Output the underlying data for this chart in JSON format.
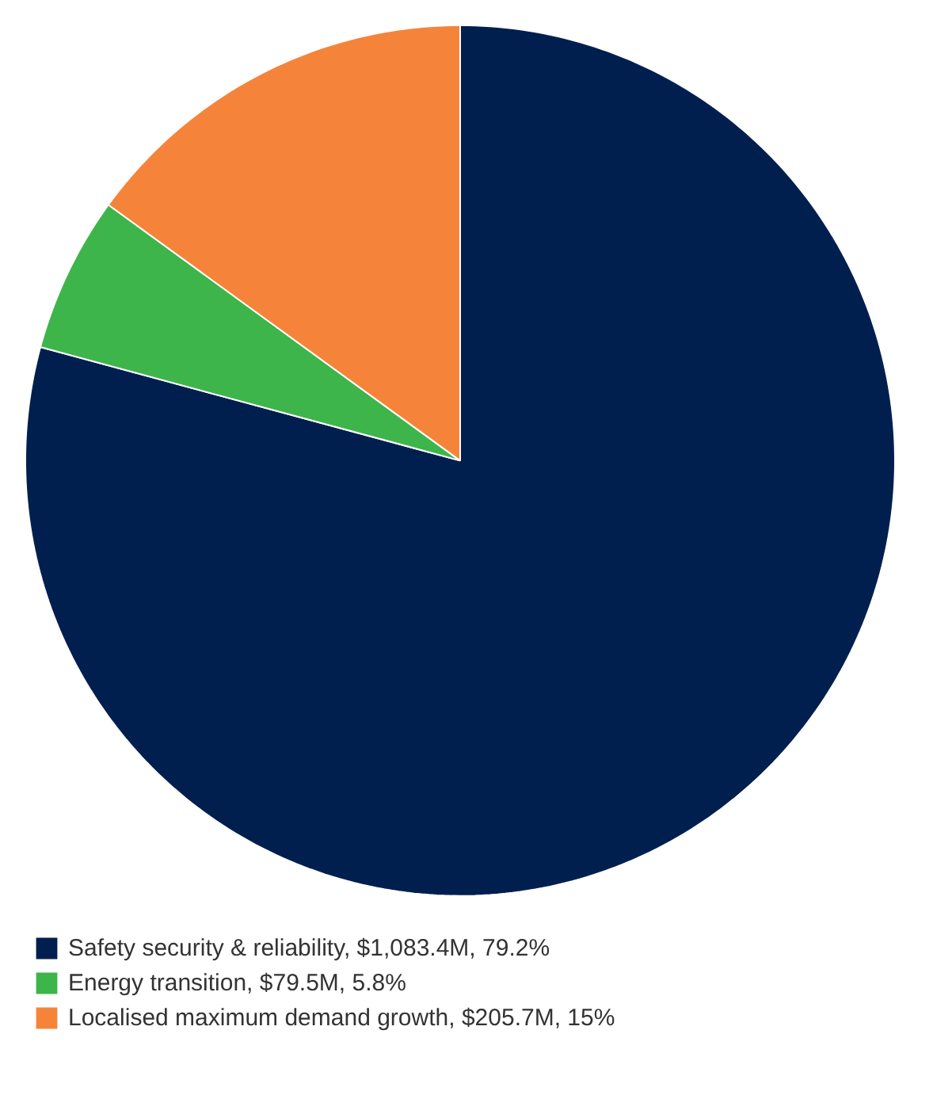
{
  "chart_data": {
    "type": "pie",
    "categories": [
      "Safety security & reliability, $1,083.4M, 79.2%",
      "Energy transition, $79.5M, 5.8%",
      "Localised maximum demand growth, $205.7M, 15%"
    ],
    "values": [
      79.2,
      5.8,
      15
    ],
    "colors": [
      "#001f4f",
      "#3db54a",
      "#f5843a"
    ],
    "legend": "bottom left"
  }
}
